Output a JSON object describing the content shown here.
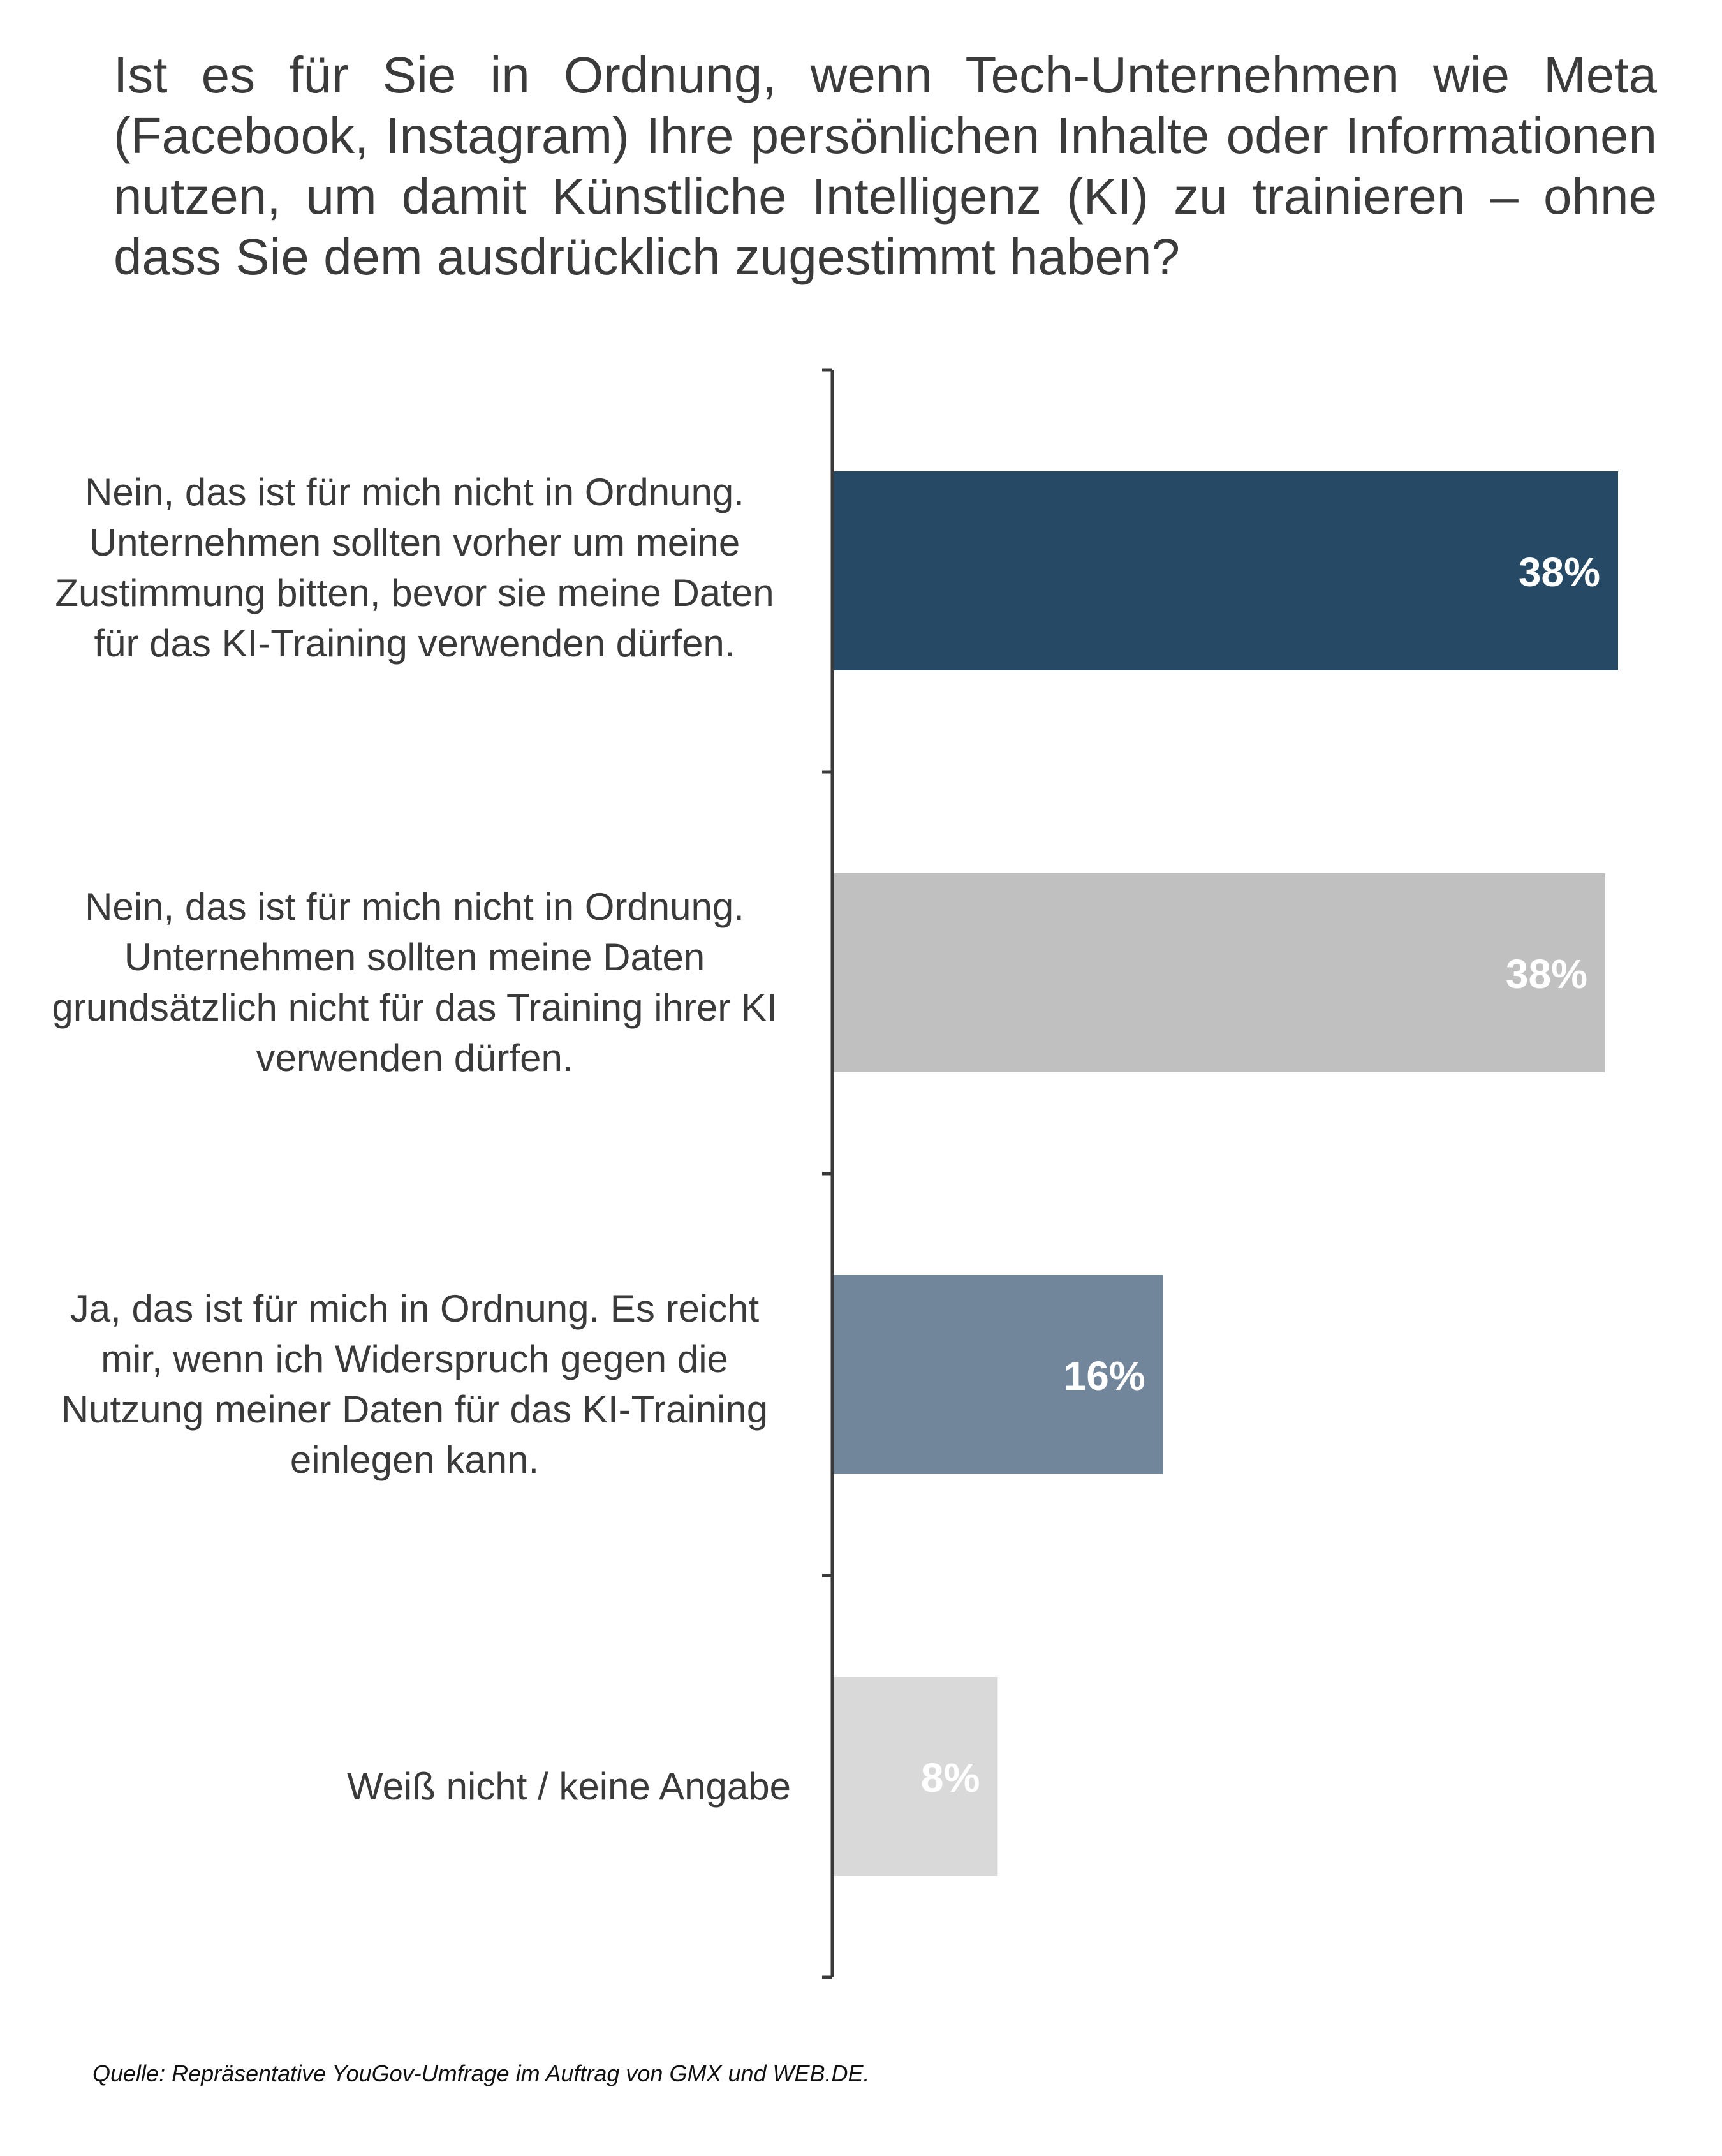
{
  "chart_data": {
    "type": "bar",
    "orientation": "horizontal",
    "title": "Ist es für Sie in Ordnung, wenn Tech-Unternehmen wie Meta (Facebook, Instagram) Ihre persönlichen Inhalte oder Informationen nutzen, um damit Künstliche Intelligenz (KI) zu trainieren – ohne dass Sie dem ausdrücklich zugestimmt haben?",
    "categories": [
      "Nein, das ist für mich nicht in Ordnung. Unternehmen sollten vorher um meine Zustimmung bitten, bevor sie meine Daten für das KI-Training verwenden dürfen.",
      "Nein, das ist für mich nicht in Ordnung. Unternehmen sollten meine Daten grundsätzlich nicht für das Training ihrer KI verwenden dürfen.",
      "Ja, das ist für mich in Ordnung. Es reicht mir, wenn ich Widerspruch gegen die Nutzung meiner Daten für das KI-Training einlegen kann.",
      "Weiß nicht / keine Angabe"
    ],
    "values": [
      38,
      38,
      16,
      8
    ],
    "data_labels": [
      "38%",
      "38%",
      "16%",
      "8%"
    ],
    "bar_colors": [
      "#264a66",
      "#c0c0c0",
      "#71869b",
      "#d9d9d9"
    ],
    "xlabel": "",
    "ylabel": "",
    "value_axis_visible": false,
    "grid": false,
    "legend": "none"
  },
  "source": "Quelle: Repräsentative YouGov-Umfrage im Auftrag von GMX und WEB.DE."
}
